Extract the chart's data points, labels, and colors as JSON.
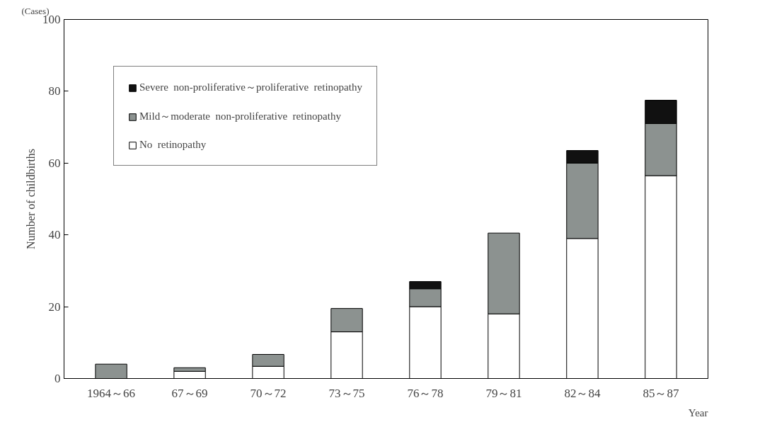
{
  "chart_data": {
    "type": "bar",
    "stacked": true,
    "ylabel": "Number of childbirths",
    "xlabel": "Year",
    "annotations": [
      "(Cases)"
    ],
    "categories": [
      "1964～66",
      "67～69",
      "70～72",
      "73～75",
      "76～78",
      "79～81",
      "82～84",
      "85～87"
    ],
    "ylim": [
      0,
      100
    ],
    "yticks": [
      0,
      20,
      40,
      60,
      80,
      100
    ],
    "legend": "top left",
    "grid": false,
    "series": [
      {
        "name": "No  retinopathy",
        "color": "#ffffff",
        "values": [
          0,
          2,
          3.4,
          13,
          20,
          18,
          39,
          56.5
        ]
      },
      {
        "name": "Mild～moderate  non-proliferative  retinopathy",
        "color": "#8c9290",
        "values": [
          4,
          1,
          3.3,
          6.5,
          5,
          22.5,
          21,
          14.5
        ]
      },
      {
        "name": "Severe  non-proliferative～proliferative  retinopathy",
        "color": "#111111",
        "values": [
          0,
          0,
          0,
          0,
          2,
          0,
          3.5,
          6.5
        ]
      }
    ]
  }
}
